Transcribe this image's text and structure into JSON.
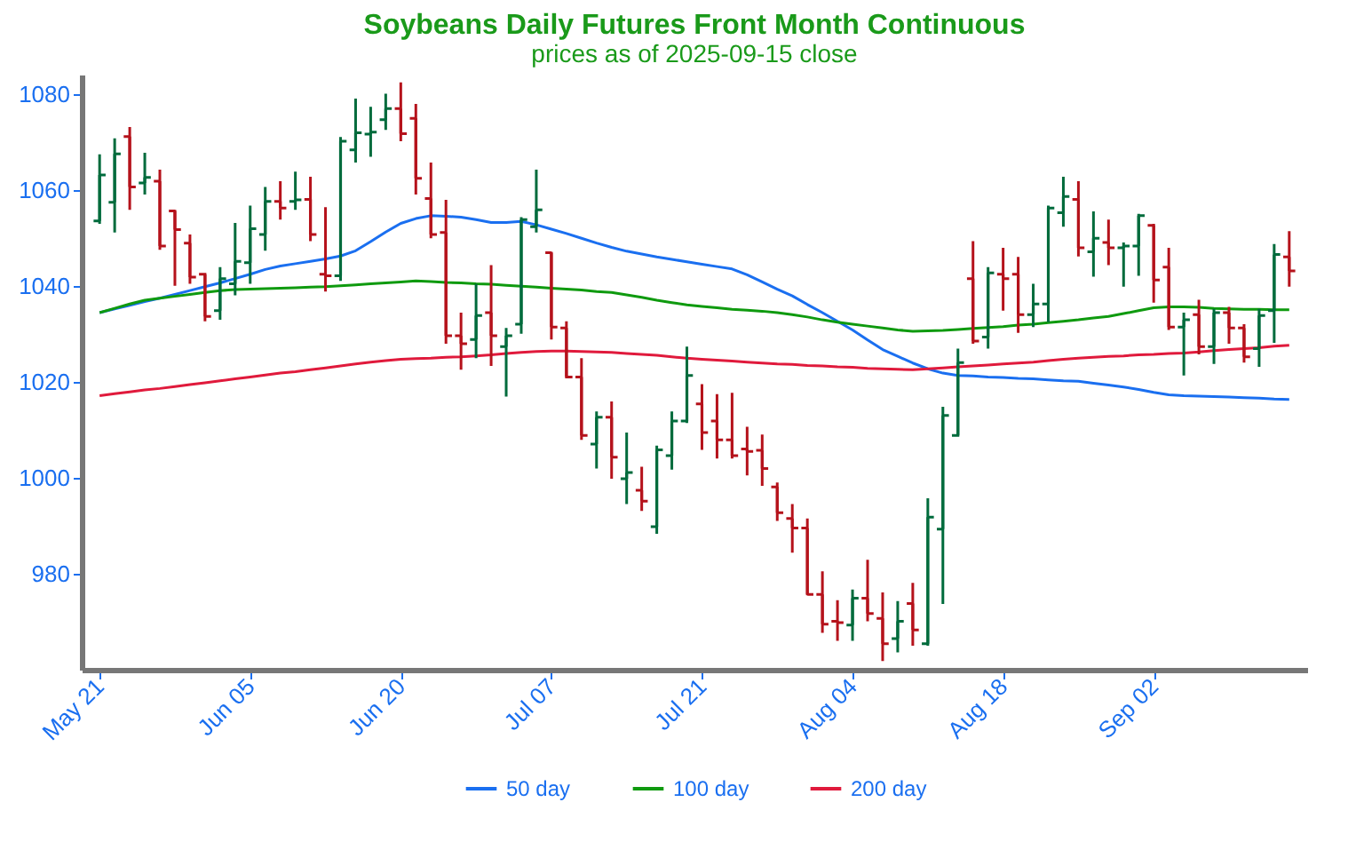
{
  "chart_data": {
    "type": "candlestick",
    "title": "Soybeans Daily Futures Front Month Continuous",
    "subtitle": "prices as of 2025-09-15 close",
    "categories": [
      "May 21",
      null,
      null,
      null,
      null,
      null,
      null,
      null,
      null,
      null,
      "Jun 05",
      null,
      null,
      null,
      null,
      null,
      null,
      null,
      null,
      null,
      "Jun 20",
      null,
      null,
      null,
      null,
      null,
      null,
      null,
      null,
      null,
      "Jul 07",
      null,
      null,
      null,
      null,
      null,
      null,
      null,
      null,
      null,
      "Jul 21",
      null,
      null,
      null,
      null,
      null,
      null,
      null,
      null,
      null,
      "Aug 04",
      null,
      null,
      null,
      null,
      null,
      null,
      null,
      null,
      null,
      "Aug 18",
      null,
      null,
      null,
      null,
      null,
      null,
      null,
      null,
      null,
      "Sep 02",
      null,
      null,
      null,
      null,
      null,
      null,
      null,
      null,
      null
    ],
    "ohlc": [
      [
        1053.5,
        1067.4,
        1052.9,
        1063.1
      ],
      [
        1057.4,
        1070.7,
        1051.1,
        1067.5
      ],
      [
        1071.1,
        1073.1,
        1055.8,
        1060.6
      ],
      [
        1061.4,
        1067.7,
        1059.0,
        1062.6
      ],
      [
        1061.8,
        1064.2,
        1047.5,
        1048.3
      ],
      [
        1055.6,
        1055.8,
        1040.0,
        1051.7
      ],
      [
        1048.9,
        1050.7,
        1040.4,
        1041.8
      ],
      [
        1042.4,
        1042.7,
        1032.6,
        1033.6
      ],
      [
        1034.8,
        1043.9,
        1032.9,
        1041.5
      ],
      [
        1040.4,
        1053.1,
        1038.0,
        1045.1
      ],
      [
        1044.8,
        1056.7,
        1040.4,
        1051.9
      ],
      [
        1050.7,
        1060.6,
        1047.3,
        1057.6
      ],
      [
        1057.6,
        1061.8,
        1053.8,
        1056.2
      ],
      [
        1057.6,
        1063.8,
        1055.8,
        1057.9
      ],
      [
        1058.0,
        1062.7,
        1049.3,
        1050.7
      ],
      [
        1042.4,
        1056.4,
        1038.8,
        1042.1
      ],
      [
        1042.1,
        1071.0,
        1041.0,
        1070.1
      ],
      [
        1068.3,
        1079.0,
        1065.7,
        1071.9
      ],
      [
        1071.6,
        1077.3,
        1066.9,
        1072.0
      ],
      [
        1074.6,
        1080.0,
        1072.5,
        1076.9
      ],
      [
        1076.9,
        1082.4,
        1070.1,
        1071.7
      ],
      [
        1074.9,
        1077.9,
        1059.0,
        1062.4
      ],
      [
        1058.2,
        1065.7,
        1049.9,
        1050.7
      ],
      [
        1051.1,
        1057.9,
        1027.9,
        1029.6
      ],
      [
        1029.6,
        1034.4,
        1022.5,
        1027.9
      ],
      [
        1028.8,
        1040.4,
        1024.9,
        1033.8
      ],
      [
        1034.4,
        1044.3,
        1023.3,
        1029.6
      ],
      [
        1027.3,
        1031.2,
        1016.9,
        1029.6
      ],
      [
        1032.0,
        1054.3,
        1030.0,
        1053.8
      ],
      [
        1052.3,
        1064.2,
        1051.1,
        1055.8
      ],
      [
        1046.9,
        1047.1,
        1028.8,
        1031.4
      ],
      [
        1031.2,
        1032.6,
        1021.0,
        1021.0
      ],
      [
        1021.0,
        1024.9,
        1007.9,
        1008.8
      ],
      [
        1007.0,
        1013.8,
        1001.9,
        1012.6
      ],
      [
        1012.6,
        1015.9,
        999.8,
        1004.3
      ],
      [
        999.8,
        1009.4,
        994.5,
        1001.1
      ],
      [
        997.4,
        1002.3,
        993.1,
        995.1
      ],
      [
        989.8,
        1006.7,
        988.3,
        1005.8
      ],
      [
        1004.6,
        1013.8,
        1001.7,
        1011.8
      ],
      [
        1011.8,
        1027.3,
        1011.4,
        1021.3
      ],
      [
        1015.4,
        1019.5,
        1005.8,
        1009.4
      ],
      [
        1011.8,
        1017.4,
        1004.0,
        1007.9
      ],
      [
        1007.9,
        1017.7,
        1004.0,
        1004.6
      ],
      [
        1006.0,
        1010.6,
        1000.5,
        1005.5
      ],
      [
        1005.7,
        1009.0,
        998.3,
        1001.9
      ],
      [
        998.1,
        999.0,
        991.0,
        992.7
      ],
      [
        991.5,
        994.5,
        984.4,
        989.5
      ],
      [
        989.5,
        991.5,
        975.5,
        975.7
      ],
      [
        975.7,
        980.5,
        967.7,
        969.5
      ],
      [
        970.1,
        974.5,
        966.0,
        969.8
      ],
      [
        969.3,
        976.7,
        966.0,
        974.9
      ],
      [
        974.9,
        982.9,
        970.1,
        971.7
      ],
      [
        970.7,
        976.1,
        961.8,
        965.4
      ],
      [
        966.5,
        974.3,
        963.6,
        970.1
      ],
      [
        973.8,
        978.1,
        965.0,
        968.3
      ],
      [
        965.4,
        995.7,
        965.0,
        991.8
      ],
      [
        989.3,
        1014.8,
        973.7,
        1013.0
      ],
      [
        1008.8,
        1026.9,
        1008.8,
        1024.0
      ],
      [
        1041.5,
        1049.3,
        1027.9,
        1028.5
      ],
      [
        1029.3,
        1043.9,
        1026.9,
        1042.7
      ],
      [
        1042.4,
        1047.9,
        1034.8,
        1041.5
      ],
      [
        1042.4,
        1046.0,
        1030.2,
        1034.0
      ],
      [
        1034.0,
        1040.4,
        1031.4,
        1036.2
      ],
      [
        1036.2,
        1056.7,
        1032.4,
        1056.2
      ],
      [
        1055.2,
        1062.7,
        1052.3,
        1058.6
      ],
      [
        1058.0,
        1061.8,
        1046.1,
        1047.9
      ],
      [
        1047.1,
        1055.5,
        1041.9,
        1049.9
      ],
      [
        1049.0,
        1053.8,
        1044.3,
        1047.9
      ],
      [
        1047.9,
        1049.0,
        1039.8,
        1048.3
      ],
      [
        1048.3,
        1055.0,
        1042.1,
        1054.6
      ],
      [
        1052.6,
        1052.9,
        1036.5,
        1041.2
      ],
      [
        1043.9,
        1047.9,
        1030.8,
        1031.4
      ],
      [
        1031.4,
        1034.4,
        1021.3,
        1032.9
      ],
      [
        1034.0,
        1037.1,
        1025.7,
        1027.3
      ],
      [
        1027.3,
        1035.2,
        1023.7,
        1034.4
      ],
      [
        1034.4,
        1035.6,
        1027.9,
        1031.2
      ],
      [
        1031.2,
        1032.0,
        1024.0,
        1025.2
      ],
      [
        1026.9,
        1035.2,
        1023.1,
        1033.8
      ],
      [
        1034.8,
        1048.7,
        1028.1,
        1046.5
      ],
      [
        1046.0,
        1051.4,
        1039.8,
        1043.1
      ]
    ],
    "colors": [
      "#006b3c",
      "#006b3c",
      "#b5121b",
      "#006b3c",
      "#b5121b",
      "#b5121b",
      "#b5121b",
      "#b5121b",
      "#006b3c",
      "#006b3c",
      "#006b3c",
      "#006b3c",
      "#b5121b",
      "#006b3c",
      "#b5121b",
      "#b5121b",
      "#006b3c",
      "#006b3c",
      "#006b3c",
      "#006b3c",
      "#b5121b",
      "#b5121b",
      "#b5121b",
      "#b5121b",
      "#b5121b",
      "#006b3c",
      "#b5121b",
      "#006b3c",
      "#006b3c",
      "#006b3c",
      "#b5121b",
      "#b5121b",
      "#b5121b",
      "#006b3c",
      "#b5121b",
      "#006b3c",
      "#b5121b",
      "#006b3c",
      "#006b3c",
      "#006b3c",
      "#b5121b",
      "#b5121b",
      "#b5121b",
      "#b5121b",
      "#b5121b",
      "#b5121b",
      "#b5121b",
      "#b5121b",
      "#b5121b",
      "#b5121b",
      "#006b3c",
      "#b5121b",
      "#b5121b",
      "#006b3c",
      "#b5121b",
      "#006b3c",
      "#006b3c",
      "#006b3c",
      "#b5121b",
      "#006b3c",
      "#b5121b",
      "#b5121b",
      "#006b3c",
      "#006b3c",
      "#006b3c",
      "#b5121b",
      "#006b3c",
      "#b5121b",
      "#006b3c",
      "#006b3c",
      "#b5121b",
      "#b5121b",
      "#006b3c",
      "#b5121b",
      "#006b3c",
      "#b5121b",
      "#b5121b",
      "#006b3c",
      "#006b3c",
      "#b5121b"
    ],
    "series": [
      {
        "name": "50 day",
        "type": "line",
        "color": "#1a6ff0",
        "values": [
          1034.4,
          1035.2,
          1035.9,
          1036.7,
          1037.4,
          1038.2,
          1039.0,
          1039.8,
          1040.6,
          1041.5,
          1042.4,
          1043.4,
          1044.1,
          1044.6,
          1045.1,
          1045.6,
          1046.2,
          1047.3,
          1049.2,
          1051.2,
          1053.0,
          1054.0,
          1054.6,
          1054.5,
          1054.3,
          1053.8,
          1053.2,
          1053.2,
          1053.4,
          1052.7,
          1051.8,
          1050.9,
          1049.9,
          1048.9,
          1048.0,
          1047.2,
          1046.6,
          1046.0,
          1045.5,
          1045.0,
          1044.5,
          1044.0,
          1043.5,
          1042.3,
          1040.8,
          1039.3,
          1037.9,
          1036.1,
          1034.4,
          1032.6,
          1030.8,
          1028.7,
          1026.7,
          1025.3,
          1023.9,
          1022.7,
          1021.8,
          1021.3,
          1021.2,
          1021.0,
          1020.9,
          1020.7,
          1020.6,
          1020.4,
          1020.2,
          1020.1,
          1019.7,
          1019.3,
          1018.9,
          1018.4,
          1017.8,
          1017.3,
          1017.1,
          1017.0,
          1016.9,
          1016.8,
          1016.7,
          1016.6,
          1016.4,
          1016.3
        ]
      },
      {
        "name": "100 day",
        "type": "line",
        "color": "#0f9a0f",
        "values": [
          1034.4,
          1035.3,
          1036.2,
          1037.0,
          1037.4,
          1037.8,
          1038.2,
          1038.6,
          1039.0,
          1039.2,
          1039.3,
          1039.4,
          1039.5,
          1039.6,
          1039.7,
          1039.8,
          1040.0,
          1040.2,
          1040.4,
          1040.6,
          1040.8,
          1041.0,
          1040.9,
          1040.7,
          1040.6,
          1040.4,
          1040.3,
          1040.1,
          1039.9,
          1039.7,
          1039.5,
          1039.3,
          1039.1,
          1038.8,
          1038.6,
          1038.1,
          1037.6,
          1037.0,
          1036.5,
          1036.0,
          1035.7,
          1035.4,
          1035.1,
          1034.9,
          1034.7,
          1034.4,
          1034.0,
          1033.5,
          1032.9,
          1032.4,
          1032.0,
          1031.6,
          1031.2,
          1030.8,
          1030.5,
          1030.6,
          1030.7,
          1030.9,
          1031.1,
          1031.3,
          1031.5,
          1031.8,
          1032.0,
          1032.3,
          1032.6,
          1032.9,
          1033.3,
          1033.6,
          1034.2,
          1034.8,
          1035.4,
          1035.6,
          1035.6,
          1035.5,
          1035.3,
          1035.2,
          1035.1,
          1035.1,
          1035.0,
          1035.0
        ]
      },
      {
        "name": "200 day",
        "type": "line",
        "color": "#e01a3c",
        "values": [
          1017.1,
          1017.5,
          1017.9,
          1018.3,
          1018.6,
          1019.0,
          1019.4,
          1019.8,
          1020.2,
          1020.6,
          1021.0,
          1021.4,
          1021.8,
          1022.1,
          1022.5,
          1022.9,
          1023.3,
          1023.7,
          1024.1,
          1024.4,
          1024.7,
          1024.8,
          1024.9,
          1025.1,
          1025.2,
          1025.4,
          1025.6,
          1025.9,
          1026.1,
          1026.3,
          1026.4,
          1026.4,
          1026.3,
          1026.2,
          1026.1,
          1025.9,
          1025.7,
          1025.5,
          1025.2,
          1024.9,
          1024.7,
          1024.5,
          1024.3,
          1024.1,
          1023.9,
          1023.7,
          1023.6,
          1023.4,
          1023.3,
          1023.1,
          1023.0,
          1022.8,
          1022.7,
          1022.6,
          1022.5,
          1022.7,
          1022.9,
          1023.1,
          1023.3,
          1023.5,
          1023.7,
          1023.9,
          1024.1,
          1024.4,
          1024.7,
          1024.9,
          1025.1,
          1025.3,
          1025.4,
          1025.6,
          1025.7,
          1025.9,
          1026.0,
          1026.2,
          1026.5,
          1026.7,
          1026.9,
          1027.1,
          1027.4,
          1027.6
        ]
      }
    ],
    "ylim": [
      960,
      1084
    ],
    "yticks": [
      980,
      1000,
      1020,
      1040,
      1060,
      1080
    ],
    "grid": false,
    "legend": "bottom",
    "marker": "none"
  }
}
